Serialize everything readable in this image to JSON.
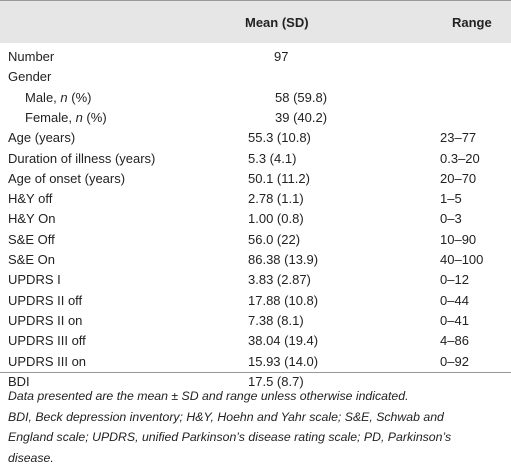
{
  "table": {
    "header": [
      "Mean (SD)",
      "Range"
    ],
    "rows": [
      {
        "label": [
          "Number"
        ],
        "mean": "97"
      },
      {
        "label": [
          "Gender"
        ]
      },
      {
        "label": [
          "Male, ",
          "n",
          " (%)"
        ],
        "mean": "58 (59.8)"
      },
      {
        "label": [
          "Female, ",
          "n",
          " (%)"
        ],
        "mean": "39 (40.2)"
      },
      {
        "label": [
          "Age (years)"
        ],
        "mean": "55.3 (10.8)",
        "range": "23–77"
      },
      {
        "label": [
          "Duration of illness (years)"
        ],
        "mean": "5.3 (4.1)",
        "range": "0.3–20"
      },
      {
        "label": [
          "Age of onset (years)"
        ],
        "mean": "50.1 (11.2)",
        "range": "20–70"
      },
      {
        "label": [
          "H&Y off"
        ],
        "mean": "2.78 (1.1)",
        "range": "1–5"
      },
      {
        "label": [
          "H&Y On"
        ],
        "mean": "1.00 (0.8)",
        "range": "0–3"
      },
      {
        "label": [
          "S&E Off"
        ],
        "mean": "56.0 (22)",
        "range": "10–90"
      },
      {
        "label": [
          "S&E On"
        ],
        "mean": "86.38 (13.9)",
        "range": "40–100"
      },
      {
        "label": [
          "UPDRS I"
        ],
        "mean": "3.83 (2.87)",
        "range": "0–12"
      },
      {
        "label": [
          "UPDRS II off"
        ],
        "mean": "17.88 (10.8)",
        "range": "0–44"
      },
      {
        "label": [
          "UPDRS II on"
        ],
        "mean": "7.38 (8.1)",
        "range": "0–41"
      },
      {
        "label": [
          "UPDRS III off"
        ],
        "mean": "38.04 (19.4)",
        "range": "4–86"
      },
      {
        "label": [
          "UPDRS III on"
        ],
        "mean": "15.93 (14.0)",
        "range": "0–92"
      },
      {
        "label": [
          "BDI"
        ],
        "mean": "17.5 (8.7)"
      }
    ],
    "footnote": [
      "Data presented are the mean ± SD and range unless otherwise indicated.",
      "BDI, Beck depression inventory; H&Y, Hoehn and Yahr scale; S&E, Schwab and",
      "England scale; UPDRS, unified Parkinson’s disease rating scale; PD, Parkinson’s",
      "disease."
    ]
  }
}
